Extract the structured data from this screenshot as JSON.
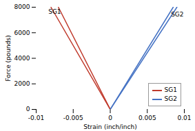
{
  "chart_data": {
    "type": "line",
    "xlabel": "Strain (inch/inch)",
    "ylabel": "Force (pounds)",
    "series": [
      {
        "name": "SG1",
        "color": "#c0392b",
        "x": [
          0,
          -0.008
        ],
        "values": [
          0,
          8000
        ]
      },
      {
        "color": "#c0392b",
        "x": [
          0,
          -0.007
        ],
        "values": [
          0,
          8000
        ]
      },
      {
        "name": "SG2",
        "color": "#4472c4",
        "x": [
          0,
          0.009
        ],
        "values": [
          0,
          8000
        ]
      },
      {
        "color": "#4472c4",
        "x": [
          0,
          0.0085
        ],
        "values": [
          0,
          8000
        ]
      }
    ],
    "annotations": [
      {
        "text": "SG1",
        "x": -0.0075,
        "y": 7500
      },
      {
        "text": "SG2",
        "x": 0.0082,
        "y": 7600
      }
    ],
    "xlim": [
      -0.01,
      0.01
    ],
    "ylim": [
      0,
      8000
    ],
    "xticks": [
      -0.01,
      -0.005,
      0,
      0.005,
      0.01
    ],
    "yticks": [
      0,
      2000,
      4000,
      6000,
      8000
    ],
    "legend": "lower right"
  }
}
